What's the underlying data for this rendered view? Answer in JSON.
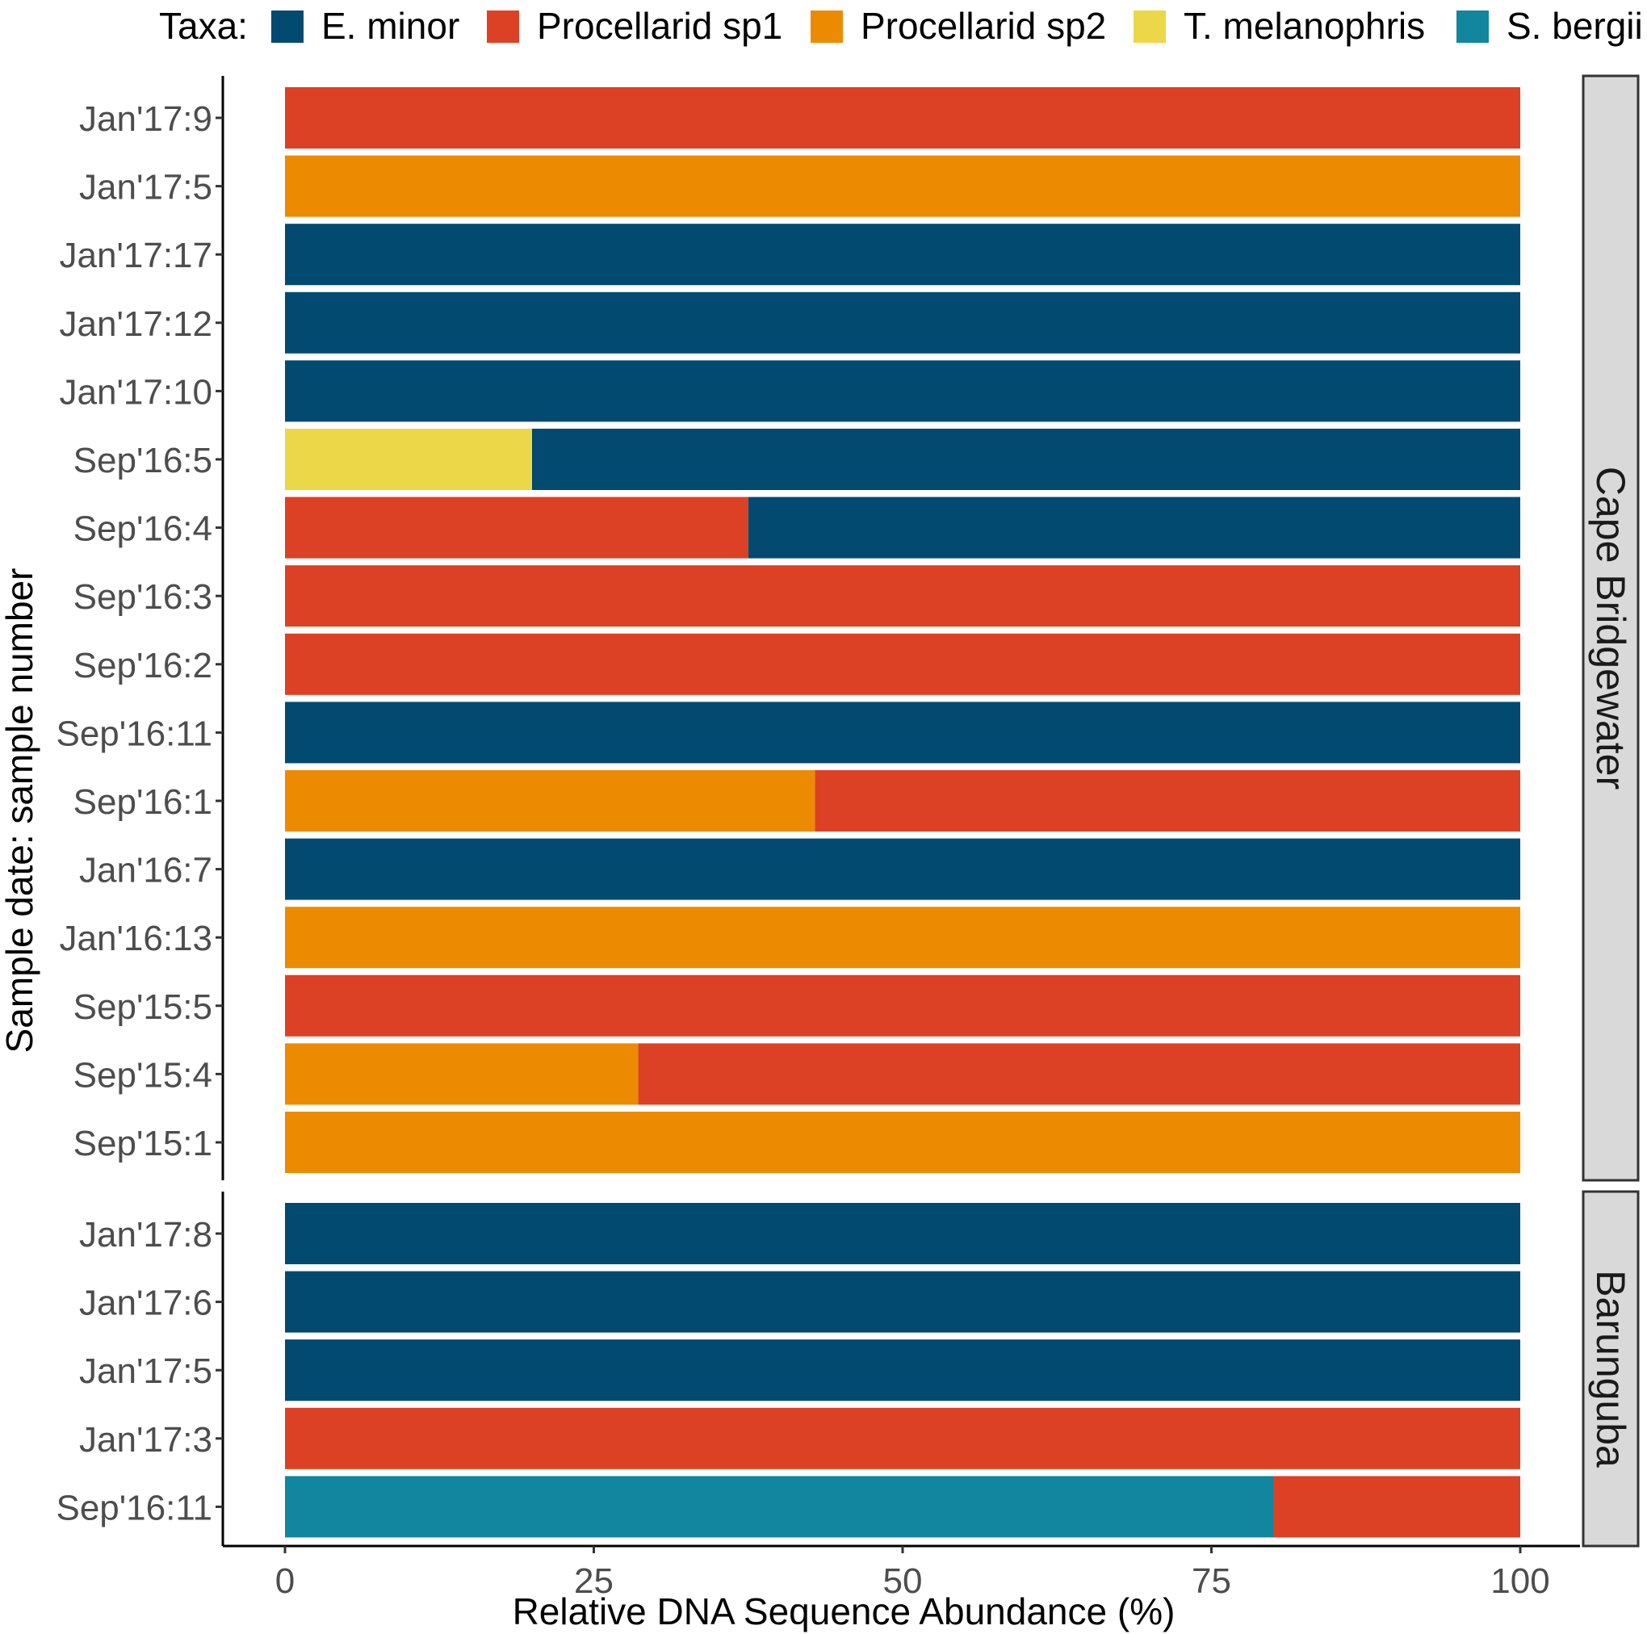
{
  "chart_data": {
    "type": "bar",
    "orientation": "horizontal",
    "stacked": true,
    "xlabel": "Relative DNA Sequence Abundance (%)",
    "ylabel": "Sample date: sample number",
    "xlim": [
      0,
      100
    ],
    "xticks": [
      "0",
      "25",
      "50",
      "75",
      "100"
    ],
    "grid": false,
    "legend": {
      "title": "Taxa:",
      "placement": "top",
      "items": [
        {
          "name": "E. minor",
          "color": "#034a70"
        },
        {
          "name": "Procellarid sp1",
          "color": "#dc4125"
        },
        {
          "name": "Procellarid sp2",
          "color": "#ec8b02"
        },
        {
          "name": "T. melanophris",
          "color": "#ecd748"
        },
        {
          "name": "S. bergii",
          "color": "#11869e"
        }
      ]
    },
    "panels": [
      {
        "name": "Cape Bridgewater",
        "samples": [
          {
            "label": "Jan'17:9",
            "segments": [
              {
                "taxon": "Procellarid sp1",
                "value": 100
              }
            ]
          },
          {
            "label": "Jan'17:5",
            "segments": [
              {
                "taxon": "Procellarid sp2",
                "value": 100
              }
            ]
          },
          {
            "label": "Jan'17:17",
            "segments": [
              {
                "taxon": "E. minor",
                "value": 100
              }
            ]
          },
          {
            "label": "Jan'17:12",
            "segments": [
              {
                "taxon": "E. minor",
                "value": 100
              }
            ]
          },
          {
            "label": "Jan'17:10",
            "segments": [
              {
                "taxon": "E. minor",
                "value": 100
              }
            ]
          },
          {
            "label": "Sep'16:5",
            "segments": [
              {
                "taxon": "T. melanophris",
                "value": 20
              },
              {
                "taxon": "E. minor",
                "value": 80
              }
            ]
          },
          {
            "label": "Sep'16:4",
            "segments": [
              {
                "taxon": "Procellarid sp1",
                "value": 37.5
              },
              {
                "taxon": "E. minor",
                "value": 62.5
              }
            ]
          },
          {
            "label": "Sep'16:3",
            "segments": [
              {
                "taxon": "Procellarid sp1",
                "value": 100
              }
            ]
          },
          {
            "label": "Sep'16:2",
            "segments": [
              {
                "taxon": "Procellarid sp1",
                "value": 100
              }
            ]
          },
          {
            "label": "Sep'16:11",
            "segments": [
              {
                "taxon": "E. minor",
                "value": 100
              }
            ]
          },
          {
            "label": "Sep'16:1",
            "segments": [
              {
                "taxon": "Procellarid sp2",
                "value": 42.9
              },
              {
                "taxon": "Procellarid sp1",
                "value": 57.1
              }
            ]
          },
          {
            "label": "Jan'16:7",
            "segments": [
              {
                "taxon": "E. minor",
                "value": 100
              }
            ]
          },
          {
            "label": "Jan'16:13",
            "segments": [
              {
                "taxon": "Procellarid sp2",
                "value": 100
              }
            ]
          },
          {
            "label": "Sep'15:5",
            "segments": [
              {
                "taxon": "Procellarid sp1",
                "value": 100
              }
            ]
          },
          {
            "label": "Sep'15:4",
            "segments": [
              {
                "taxon": "Procellarid sp2",
                "value": 28.6
              },
              {
                "taxon": "Procellarid sp1",
                "value": 71.4
              }
            ]
          },
          {
            "label": "Sep'15:1",
            "segments": [
              {
                "taxon": "Procellarid sp2",
                "value": 100
              }
            ]
          }
        ]
      },
      {
        "name": "Barunguba",
        "samples": [
          {
            "label": "Jan'17:8",
            "segments": [
              {
                "taxon": "E. minor",
                "value": 100
              }
            ]
          },
          {
            "label": "Jan'17:6",
            "segments": [
              {
                "taxon": "E. minor",
                "value": 100
              }
            ]
          },
          {
            "label": "Jan'17:5",
            "segments": [
              {
                "taxon": "E. minor",
                "value": 100
              }
            ]
          },
          {
            "label": "Jan'17:3",
            "segments": [
              {
                "taxon": "Procellarid sp1",
                "value": 100
              }
            ]
          },
          {
            "label": "Sep'16:11",
            "segments": [
              {
                "taxon": "S. bergii",
                "value": 80
              },
              {
                "taxon": "Procellarid sp1",
                "value": 20
              }
            ]
          }
        ]
      }
    ]
  }
}
